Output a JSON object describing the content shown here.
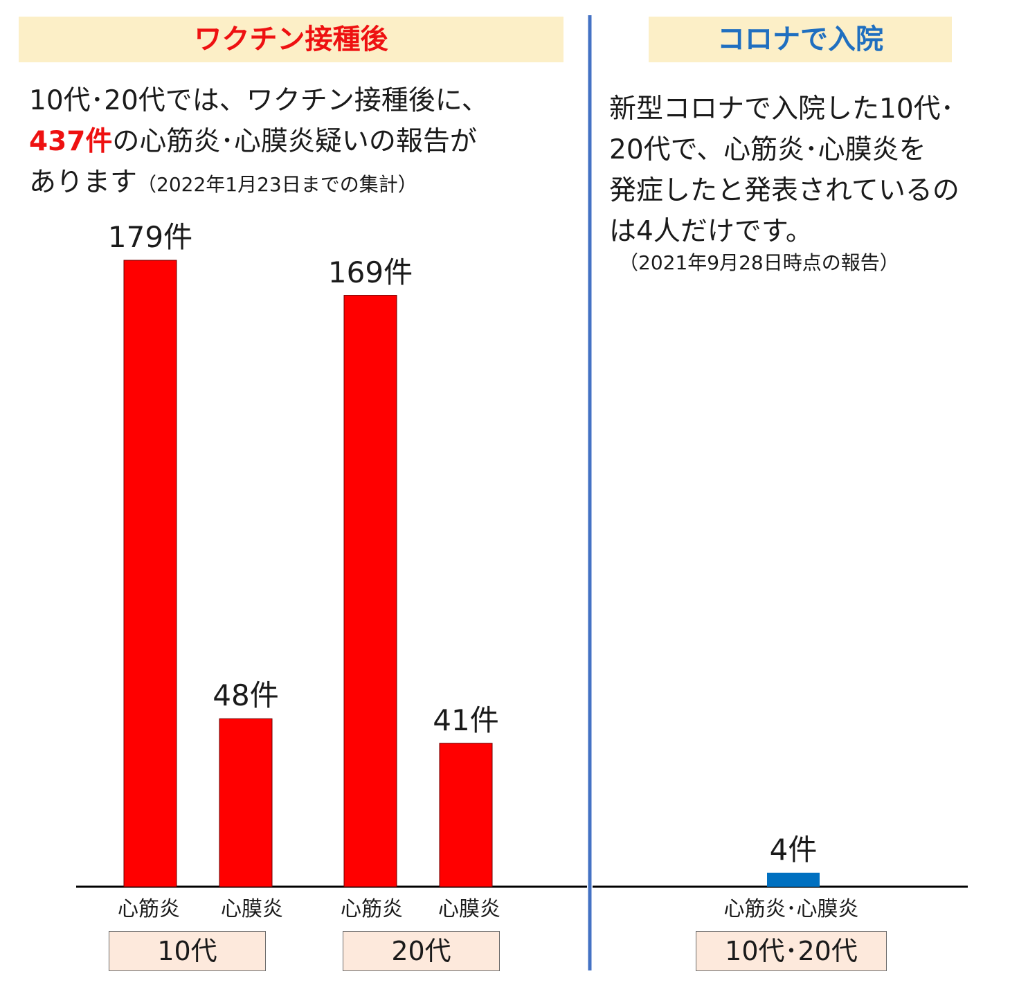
{
  "left_panel": {
    "header": "ワクチン接種後",
    "intro_line1": "10代･20代では、ワクチン接種後に、",
    "intro_highlight": "437件",
    "intro_line2_rest": "の心筋炎･心膜炎疑いの報告が",
    "intro_line3": "あります",
    "intro_note": "（2022年1月23日までの集計）",
    "groups": [
      "10代",
      "20代"
    ]
  },
  "right_panel": {
    "header": "コロナで入院",
    "text_lines": [
      "新型コロナで入院した10代･",
      "20代で、心筋炎･心膜炎を",
      "発症したと発表されているの",
      "は4人だけです。"
    ],
    "note": "（2021年9月28日時点の報告）",
    "group": "10代･20代"
  },
  "colors": {
    "vaccine_bar": "#ff0000",
    "corona_bar": "#0070c0",
    "left_header_text": "#ee1111",
    "right_header_text": "#1f6fc0",
    "header_bg": "#fcefc7",
    "group_box_bg": "#fde9dc",
    "divider": "#4472c4"
  },
  "chart_data": [
    {
      "type": "bar",
      "categories": [
        "心筋炎",
        "心膜炎",
        "心筋炎",
        "心膜炎"
      ],
      "groups": [
        "10代",
        "10代",
        "20代",
        "20代"
      ],
      "values": [
        179,
        48,
        169,
        41
      ],
      "data_labels": [
        "179件",
        "48件",
        "169件",
        "41件"
      ],
      "ylim": [
        0,
        179
      ]
    },
    {
      "type": "bar",
      "categories": [
        "心筋炎･心膜炎"
      ],
      "groups": [
        "10代･20代"
      ],
      "values": [
        4
      ],
      "data_labels": [
        "4件"
      ],
      "ylim": [
        0,
        179
      ]
    }
  ]
}
